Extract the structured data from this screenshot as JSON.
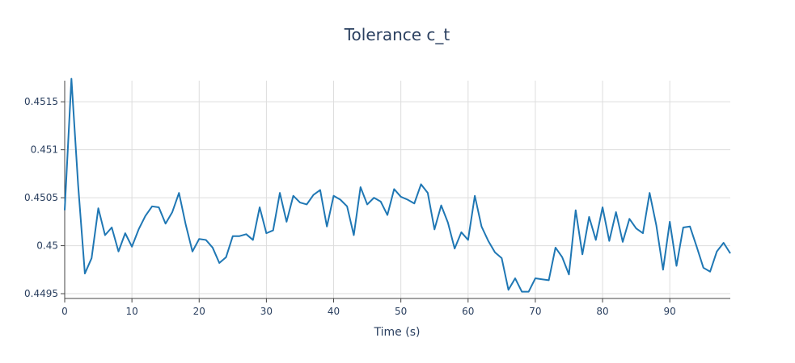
{
  "chart_data": {
    "type": "line",
    "title": "Tolerance c_t",
    "xlabel": "Time (s)",
    "ylabel": "",
    "xlim": [
      0,
      99
    ],
    "ylim": [
      0.44945,
      0.45172
    ],
    "grid": true,
    "x_ticks": [
      0,
      10,
      20,
      30,
      40,
      50,
      60,
      70,
      80,
      90
    ],
    "x_tick_labels": [
      "0",
      "10",
      "20",
      "30",
      "40",
      "50",
      "60",
      "70",
      "80",
      "90"
    ],
    "y_ticks": [
      0.4495,
      0.45,
      0.4505,
      0.451,
      0.4515
    ],
    "y_tick_labels": [
      "0.4495",
      "0.45",
      "0.4505",
      "0.451",
      "0.4515"
    ],
    "series": [
      {
        "name": "",
        "color": "#1f77b4",
        "x": [
          0,
          1,
          2,
          3,
          4,
          5,
          6,
          7,
          8,
          9,
          10,
          11,
          12,
          13,
          14,
          15,
          16,
          17,
          18,
          19,
          20,
          21,
          22,
          23,
          24,
          25,
          26,
          27,
          28,
          29,
          30,
          31,
          32,
          33,
          34,
          35,
          36,
          37,
          38,
          39,
          40,
          41,
          42,
          43,
          44,
          45,
          46,
          47,
          48,
          49,
          50,
          51,
          52,
          53,
          54,
          55,
          56,
          57,
          58,
          59,
          60,
          61,
          62,
          63,
          64,
          65,
          66,
          67,
          68,
          69,
          70,
          71,
          72,
          73,
          74,
          75,
          76,
          77,
          78,
          79,
          80,
          81,
          82,
          83,
          84,
          85,
          86,
          87,
          88,
          89,
          90,
          91,
          92,
          93,
          94,
          95,
          96,
          97,
          98,
          99
        ],
        "values": [
          0.45037,
          0.45174,
          0.45063,
          0.44971,
          0.44987,
          0.45039,
          0.45011,
          0.45019,
          0.44994,
          0.45013,
          0.44999,
          0.45017,
          0.45031,
          0.45041,
          0.4504,
          0.45023,
          0.45035,
          0.45055,
          0.45022,
          0.44994,
          0.45007,
          0.45006,
          0.44998,
          0.44982,
          0.44988,
          0.4501,
          0.4501,
          0.45012,
          0.45006,
          0.4504,
          0.45013,
          0.45016,
          0.45055,
          0.45025,
          0.45052,
          0.45045,
          0.45043,
          0.45053,
          0.45058,
          0.4502,
          0.45052,
          0.45048,
          0.45041,
          0.45011,
          0.45061,
          0.45043,
          0.4505,
          0.45046,
          0.45032,
          0.45059,
          0.45051,
          0.45048,
          0.45044,
          0.45064,
          0.45055,
          0.45017,
          0.45042,
          0.45024,
          0.44997,
          0.45014,
          0.45006,
          0.45052,
          0.4502,
          0.45005,
          0.44993,
          0.44987,
          0.44954,
          0.44966,
          0.44952,
          0.44952,
          0.44966,
          0.44965,
          0.44964,
          0.44998,
          0.44988,
          0.4497,
          0.45037,
          0.44991,
          0.4503,
          0.45006,
          0.4504,
          0.45005,
          0.45035,
          0.45004,
          0.45028,
          0.45018,
          0.45013,
          0.45055,
          0.45021,
          0.44975,
          0.45025,
          0.44979,
          0.45019,
          0.4502,
          0.44999,
          0.44977,
          0.44973,
          0.44994,
          0.45003,
          0.44992
        ]
      }
    ]
  }
}
